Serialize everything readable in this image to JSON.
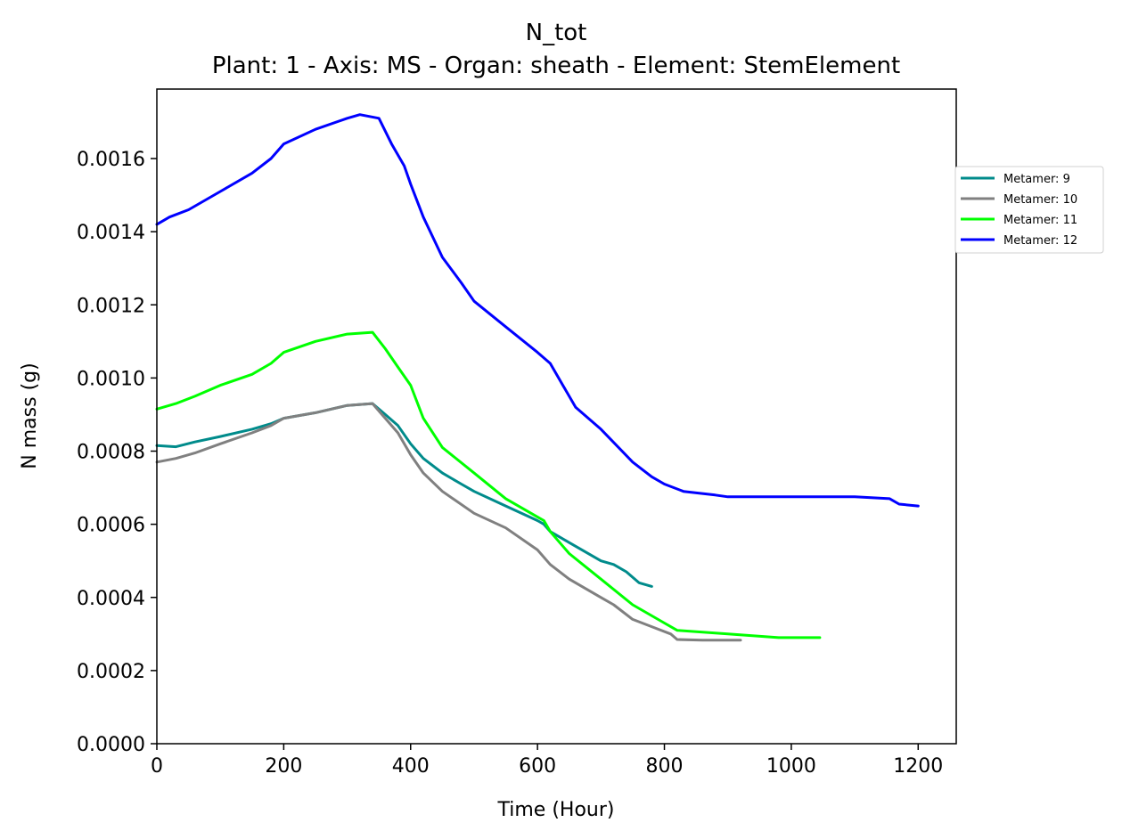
{
  "chart_data": {
    "type": "line",
    "title": "N_tot",
    "subtitle": "Plant: 1 - Axis: MS - Organ: sheath - Element: StemElement",
    "xlabel": "Time (Hour)",
    "ylabel": "N mass (g)",
    "xlim": [
      0,
      1260
    ],
    "ylim": [
      0,
      0.00179
    ],
    "xticks": [
      0,
      200,
      400,
      600,
      800,
      1000,
      1200
    ],
    "xtick_labels": [
      "0",
      "200",
      "400",
      "600",
      "800",
      "1000",
      "1200"
    ],
    "yticks": [
      0,
      0.0002,
      0.0004,
      0.0006,
      0.0008,
      0.001,
      0.0012,
      0.0014,
      0.0016
    ],
    "ytick_labels": [
      "0.0000",
      "0.0002",
      "0.0004",
      "0.0006",
      "0.0008",
      "0.0010",
      "0.0012",
      "0.0014",
      "0.0016"
    ],
    "grid": false,
    "legend_position": "right, outside plot",
    "series": [
      {
        "name": "Metamer: 9",
        "color": "#008b8b",
        "points": [
          [
            0,
            0.000815
          ],
          [
            30,
            0.000812
          ],
          [
            60,
            0.000825
          ],
          [
            100,
            0.00084
          ],
          [
            150,
            0.00086
          ],
          [
            180,
            0.000875
          ],
          [
            200,
            0.00089
          ],
          [
            250,
            0.000905
          ],
          [
            300,
            0.000925
          ],
          [
            340,
            0.00093
          ],
          [
            360,
            0.0009
          ],
          [
            380,
            0.00087
          ],
          [
            400,
            0.00082
          ],
          [
            420,
            0.00078
          ],
          [
            450,
            0.00074
          ],
          [
            480,
            0.00071
          ],
          [
            500,
            0.00069
          ],
          [
            550,
            0.00065
          ],
          [
            600,
            0.00061
          ],
          [
            610,
            0.0006
          ],
          [
            620,
            0.00058
          ],
          [
            650,
            0.00055
          ],
          [
            700,
            0.0005
          ],
          [
            720,
            0.00049
          ],
          [
            740,
            0.00047
          ],
          [
            760,
            0.00044
          ],
          [
            780,
            0.00043
          ]
        ]
      },
      {
        "name": "Metamer: 10",
        "color": "#808080",
        "points": [
          [
            0,
            0.00077
          ],
          [
            30,
            0.00078
          ],
          [
            60,
            0.000795
          ],
          [
            100,
            0.00082
          ],
          [
            150,
            0.00085
          ],
          [
            180,
            0.00087
          ],
          [
            200,
            0.00089
          ],
          [
            250,
            0.000905
          ],
          [
            300,
            0.000925
          ],
          [
            340,
            0.00093
          ],
          [
            360,
            0.00089
          ],
          [
            380,
            0.00085
          ],
          [
            400,
            0.00079
          ],
          [
            420,
            0.00074
          ],
          [
            450,
            0.00069
          ],
          [
            500,
            0.00063
          ],
          [
            550,
            0.00059
          ],
          [
            600,
            0.00053
          ],
          [
            620,
            0.00049
          ],
          [
            650,
            0.00045
          ],
          [
            700,
            0.0004
          ],
          [
            720,
            0.00038
          ],
          [
            750,
            0.00034
          ],
          [
            780,
            0.00032
          ],
          [
            810,
            0.0003
          ],
          [
            820,
            0.000285
          ],
          [
            860,
            0.000283
          ],
          [
            920,
            0.000283
          ]
        ]
      },
      {
        "name": "Metamer: 11",
        "color": "#00ff00",
        "points": [
          [
            0,
            0.000915
          ],
          [
            30,
            0.00093
          ],
          [
            60,
            0.00095
          ],
          [
            100,
            0.00098
          ],
          [
            150,
            0.00101
          ],
          [
            180,
            0.00104
          ],
          [
            200,
            0.00107
          ],
          [
            250,
            0.0011
          ],
          [
            300,
            0.00112
          ],
          [
            340,
            0.001125
          ],
          [
            360,
            0.00108
          ],
          [
            380,
            0.00103
          ],
          [
            400,
            0.00098
          ],
          [
            420,
            0.00089
          ],
          [
            450,
            0.00081
          ],
          [
            500,
            0.00074
          ],
          [
            550,
            0.00067
          ],
          [
            600,
            0.00062
          ],
          [
            610,
            0.00061
          ],
          [
            620,
            0.00058
          ],
          [
            650,
            0.00052
          ],
          [
            700,
            0.00045
          ],
          [
            750,
            0.00038
          ],
          [
            800,
            0.00033
          ],
          [
            820,
            0.00031
          ],
          [
            900,
            0.0003
          ],
          [
            980,
            0.00029
          ],
          [
            1045,
            0.00029
          ]
        ]
      },
      {
        "name": "Metamer: 12",
        "color": "#0000ff",
        "points": [
          [
            0,
            0.00142
          ],
          [
            20,
            0.00144
          ],
          [
            50,
            0.00146
          ],
          [
            100,
            0.00151
          ],
          [
            150,
            0.00156
          ],
          [
            180,
            0.0016
          ],
          [
            200,
            0.00164
          ],
          [
            250,
            0.00168
          ],
          [
            300,
            0.00171
          ],
          [
            320,
            0.00172
          ],
          [
            350,
            0.00171
          ],
          [
            370,
            0.00164
          ],
          [
            390,
            0.00158
          ],
          [
            400,
            0.00153
          ],
          [
            420,
            0.00144
          ],
          [
            450,
            0.00133
          ],
          [
            480,
            0.00126
          ],
          [
            500,
            0.00121
          ],
          [
            550,
            0.00114
          ],
          [
            600,
            0.00107
          ],
          [
            620,
            0.00104
          ],
          [
            640,
            0.00098
          ],
          [
            660,
            0.00092
          ],
          [
            700,
            0.00086
          ],
          [
            750,
            0.00077
          ],
          [
            780,
            0.00073
          ],
          [
            800,
            0.00071
          ],
          [
            830,
            0.00069
          ],
          [
            880,
            0.00068
          ],
          [
            900,
            0.000675
          ],
          [
            1000,
            0.000675
          ],
          [
            1100,
            0.000675
          ],
          [
            1155,
            0.00067
          ],
          [
            1170,
            0.000655
          ],
          [
            1200,
            0.00065
          ]
        ]
      }
    ]
  }
}
